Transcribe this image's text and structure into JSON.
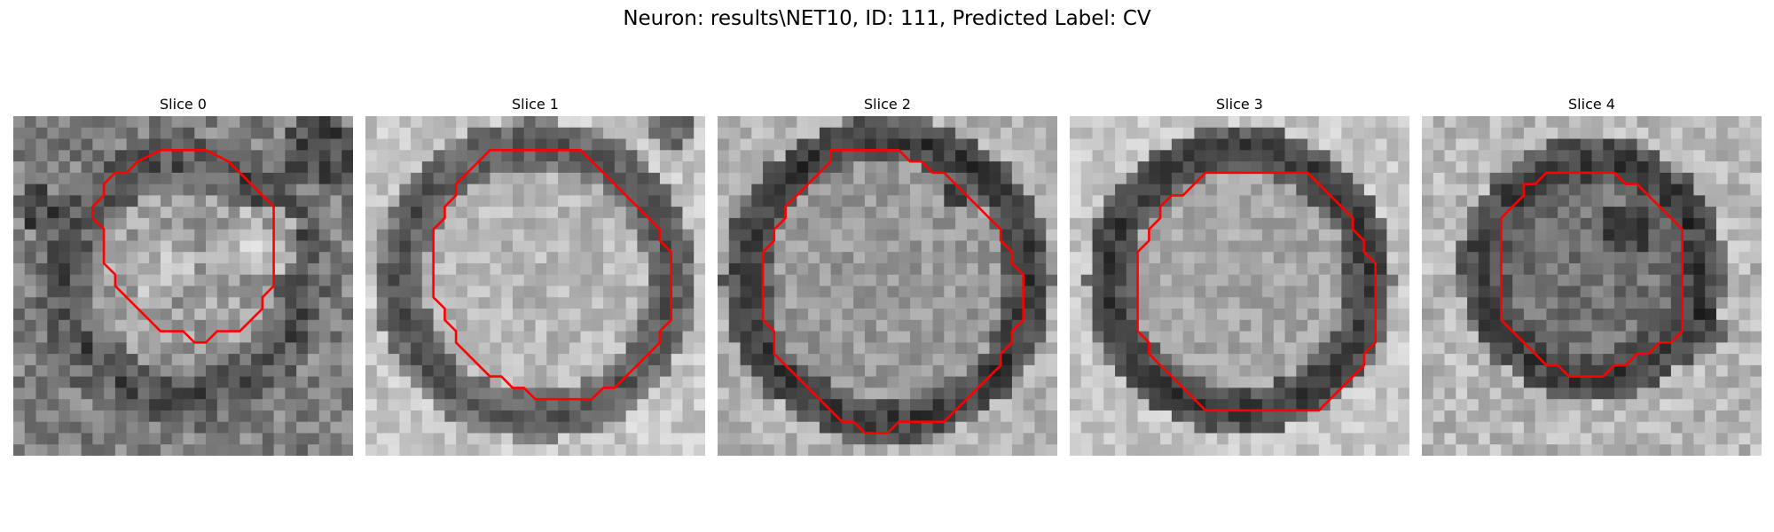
{
  "figure": {
    "title": "Neuron: results\\NET10, ID: 111, Predicted Label: CV"
  },
  "panels": [
    {
      "title": "Slice 0"
    },
    {
      "title": "Slice 1"
    },
    {
      "title": "Slice 2"
    },
    {
      "title": "Slice 3"
    },
    {
      "title": "Slice 4"
    }
  ],
  "colors": {
    "contour": "#ff0000",
    "background": "#ffffff"
  }
}
